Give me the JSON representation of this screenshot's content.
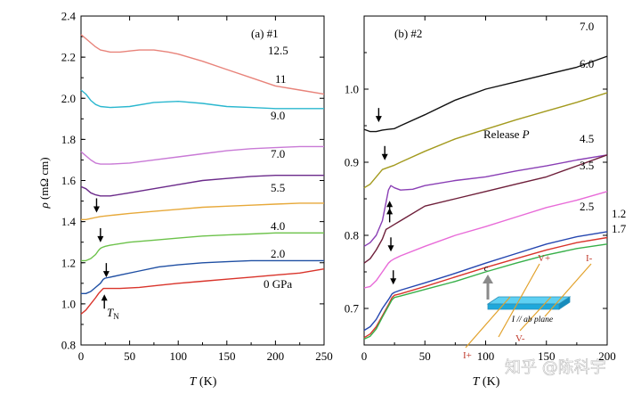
{
  "chart_data": [
    {
      "type": "line",
      "panel_label": "(a)  #1",
      "xlabel_italic": "T",
      "xlabel_unit": " (K)",
      "ylabel_italic": "ρ",
      "ylabel_unit": " (mΩ cm)",
      "xlim": [
        0,
        250
      ],
      "ylim": [
        0.8,
        2.4
      ],
      "xticks": [
        "0",
        "50",
        "100",
        "150",
        "200",
        "250"
      ],
      "yticks": [
        "0.8",
        "1.0",
        "1.2",
        "1.4",
        "1.6",
        "1.8",
        "2.0",
        "2.2",
        "2.4"
      ],
      "tn_annotation": {
        "main": "T",
        "sub": "N"
      },
      "series": [
        {
          "name": "0 GPa",
          "color": "#d9342b",
          "x": [
            0,
            5,
            10,
            15,
            18,
            20,
            22,
            23,
            25,
            30,
            40,
            60,
            80,
            100,
            125,
            150,
            175,
            200,
            225,
            250
          ],
          "y": [
            0.95,
            0.97,
            1.0,
            1.03,
            1.05,
            1.06,
            1.07,
            1.075,
            1.075,
            1.075,
            1.075,
            1.08,
            1.09,
            1.1,
            1.11,
            1.12,
            1.13,
            1.14,
            1.15,
            1.17
          ],
          "arrow": [
            24,
            1.02
          ]
        },
        {
          "name": "2.0",
          "color": "#1f4fa3",
          "x": [
            0,
            5,
            10,
            15,
            20,
            23,
            25,
            30,
            40,
            60,
            80,
            100,
            125,
            150,
            175,
            200,
            225,
            250
          ],
          "y": [
            1.05,
            1.05,
            1.06,
            1.08,
            1.1,
            1.12,
            1.125,
            1.13,
            1.14,
            1.16,
            1.18,
            1.19,
            1.2,
            1.205,
            1.21,
            1.21,
            1.21,
            1.21
          ],
          "arrow": [
            26,
            1.155
          ]
        },
        {
          "name": "4.0",
          "color": "#6cc24a",
          "x": [
            0,
            5,
            10,
            15,
            18,
            20,
            22,
            25,
            30,
            50,
            75,
            100,
            125,
            150,
            175,
            200,
            225,
            250
          ],
          "y": [
            1.21,
            1.21,
            1.22,
            1.24,
            1.26,
            1.27,
            1.275,
            1.28,
            1.285,
            1.3,
            1.31,
            1.32,
            1.33,
            1.335,
            1.34,
            1.345,
            1.345,
            1.345
          ],
          "arrow": [
            20,
            1.325
          ]
        },
        {
          "name": "5.5",
          "color": "#e7a93a",
          "x": [
            0,
            5,
            10,
            15,
            20,
            30,
            50,
            75,
            100,
            125,
            150,
            175,
            200,
            225,
            250
          ],
          "y": [
            1.41,
            1.41,
            1.415,
            1.42,
            1.425,
            1.43,
            1.44,
            1.45,
            1.46,
            1.47,
            1.475,
            1.48,
            1.485,
            1.49,
            1.49
          ],
          "arrow": [
            16,
            1.47
          ]
        },
        {
          "name": "7.0",
          "color": "#6b2a8a",
          "x": [
            0,
            5,
            10,
            15,
            20,
            30,
            50,
            75,
            100,
            125,
            150,
            175,
            200,
            225,
            250
          ],
          "y": [
            1.57,
            1.56,
            1.54,
            1.53,
            1.525,
            1.525,
            1.54,
            1.56,
            1.58,
            1.6,
            1.61,
            1.62,
            1.625,
            1.625,
            1.625
          ]
        },
        {
          "name": "9.0",
          "color": "#c97ad6",
          "x": [
            0,
            5,
            10,
            15,
            20,
            30,
            50,
            75,
            100,
            125,
            150,
            175,
            200,
            225,
            250
          ],
          "y": [
            1.74,
            1.72,
            1.7,
            1.685,
            1.68,
            1.68,
            1.685,
            1.7,
            1.715,
            1.73,
            1.745,
            1.755,
            1.76,
            1.765,
            1.765
          ]
        },
        {
          "name": "11",
          "color": "#2ab7cf",
          "x": [
            0,
            5,
            10,
            15,
            20,
            30,
            50,
            75,
            100,
            125,
            150,
            175,
            200,
            225,
            250
          ],
          "y": [
            2.04,
            2.02,
            1.99,
            1.97,
            1.96,
            1.955,
            1.96,
            1.98,
            1.985,
            1.975,
            1.96,
            1.955,
            1.95,
            1.95,
            1.95
          ]
        },
        {
          "name": "12.5",
          "color": "#e8837a",
          "x": [
            0,
            5,
            10,
            15,
            20,
            25,
            30,
            40,
            50,
            60,
            75,
            90,
            100,
            125,
            150,
            175,
            200,
            225,
            250
          ],
          "y": [
            2.31,
            2.29,
            2.27,
            2.25,
            2.235,
            2.23,
            2.225,
            2.225,
            2.23,
            2.235,
            2.235,
            2.225,
            2.215,
            2.18,
            2.14,
            2.1,
            2.06,
            2.04,
            2.02
          ]
        }
      ]
    },
    {
      "type": "line",
      "panel_label": "(b)  #2",
      "xlabel_italic": "T",
      "xlabel_unit": " (K)",
      "xlim": [
        0,
        200
      ],
      "ylim": [
        0.65,
        1.1
      ],
      "xticks": [
        "0",
        "50",
        "100",
        "150",
        "200"
      ],
      "yticks": [
        "0.7",
        "0.8",
        "0.9",
        "1.0"
      ],
      "annotation_release": {
        "text": "Release ",
        "italic": "P"
      },
      "inset": {
        "c_axis": "c",
        "v_plus": "V+",
        "v_minus": "V-",
        "i_minus": "I-",
        "i_plus": "I+",
        "plane": "I // ab plane"
      },
      "watermark": "知乎 @陈科宇",
      "series": [
        {
          "name": "7.0",
          "color": "#111111",
          "x": [
            0,
            5,
            10,
            15,
            20,
            25,
            30,
            50,
            75,
            100,
            125,
            150,
            175,
            200
          ],
          "y": [
            0.945,
            0.942,
            0.942,
            0.944,
            0.945,
            0.946,
            0.95,
            0.965,
            0.985,
            1.0,
            1.01,
            1.02,
            1.03,
            1.045
          ],
          "arrow": [
            12,
            0.962
          ]
        },
        {
          "name": "6.0",
          "color": "#a39a1e",
          "x": [
            0,
            5,
            10,
            15,
            20,
            25,
            30,
            50,
            75,
            100,
            125,
            150,
            175,
            200
          ],
          "y": [
            0.865,
            0.87,
            0.88,
            0.89,
            0.893,
            0.896,
            0.9,
            0.915,
            0.932,
            0.945,
            0.958,
            0.97,
            0.982,
            0.995
          ],
          "arrow": [
            17,
            0.91
          ]
        },
        {
          "name": "4.5",
          "color": "#8a3fb5",
          "x": [
            0,
            5,
            10,
            15,
            18,
            20,
            22,
            25,
            30,
            40,
            50,
            75,
            100,
            125,
            150,
            175,
            200
          ],
          "y": [
            0.785,
            0.79,
            0.8,
            0.82,
            0.845,
            0.862,
            0.868,
            0.865,
            0.862,
            0.863,
            0.868,
            0.875,
            0.88,
            0.888,
            0.895,
            0.903,
            0.91
          ],
          "arrow": [
            21,
            0.84
          ]
        },
        {
          "name": "3.5",
          "color": "#6e1f3a",
          "x": [
            0,
            5,
            10,
            15,
            18,
            20,
            22,
            25,
            30,
            50,
            75,
            100,
            125,
            150,
            175,
            200
          ],
          "y": [
            0.762,
            0.768,
            0.78,
            0.795,
            0.808,
            0.81,
            0.812,
            0.815,
            0.82,
            0.84,
            0.85,
            0.86,
            0.87,
            0.88,
            0.895,
            0.91
          ],
          "arrow": [
            21,
            0.83
          ]
        },
        {
          "name": "2.5",
          "color": "#e86bd8",
          "x": [
            0,
            5,
            10,
            15,
            20,
            22,
            25,
            30,
            50,
            75,
            100,
            125,
            150,
            175,
            200
          ],
          "y": [
            0.728,
            0.73,
            0.738,
            0.75,
            0.762,
            0.765,
            0.768,
            0.772,
            0.785,
            0.8,
            0.812,
            0.825,
            0.838,
            0.848,
            0.86
          ],
          "arrow": [
            22,
            0.785
          ]
        },
        {
          "name": "1.2",
          "color": "#2546b0",
          "x": [
            0,
            5,
            10,
            15,
            20,
            23,
            25,
            30,
            50,
            75,
            100,
            125,
            150,
            175,
            200
          ],
          "y": [
            0.67,
            0.675,
            0.685,
            0.7,
            0.712,
            0.72,
            0.722,
            0.725,
            0.735,
            0.748,
            0.762,
            0.775,
            0.788,
            0.798,
            0.805
          ],
          "arrow": [
            24,
            0.74
          ]
        },
        {
          "name": "",
          "color": "#d9342b",
          "x": [
            0,
            5,
            10,
            15,
            20,
            23,
            25,
            30,
            50,
            75,
            100,
            125,
            150,
            175,
            200
          ],
          "y": [
            0.66,
            0.665,
            0.675,
            0.69,
            0.705,
            0.715,
            0.718,
            0.72,
            0.73,
            0.743,
            0.756,
            0.768,
            0.78,
            0.79,
            0.797
          ]
        },
        {
          "name": "1.7",
          "color": "#38b04a",
          "x": [
            0,
            5,
            10,
            15,
            20,
            23,
            25,
            30,
            50,
            75,
            100,
            125,
            150,
            175,
            200
          ],
          "y": [
            0.658,
            0.662,
            0.672,
            0.688,
            0.703,
            0.712,
            0.715,
            0.717,
            0.726,
            0.737,
            0.75,
            0.762,
            0.773,
            0.782,
            0.788
          ]
        }
      ]
    }
  ]
}
